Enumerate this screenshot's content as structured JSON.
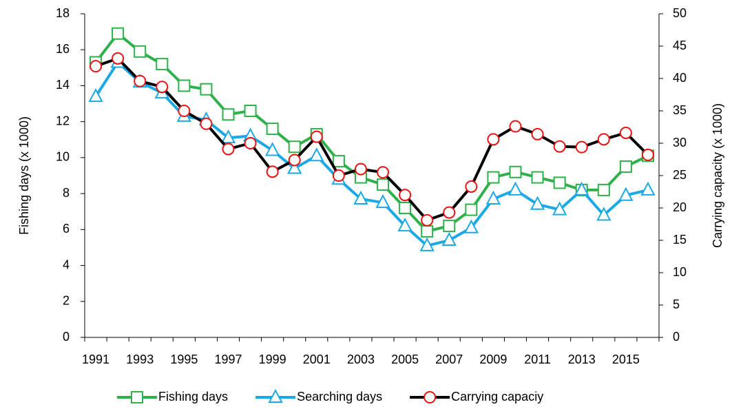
{
  "chart_data": {
    "type": "line",
    "y_label": "Fishing days (x 1000)",
    "y2_label": "Carrying capacity (x 1000)",
    "categories": [
      "1991",
      null,
      "1993",
      null,
      "1995",
      null,
      "1997",
      null,
      "1999",
      null,
      "2001",
      null,
      "2003",
      null,
      "2005",
      null,
      "2007",
      null,
      "2009",
      null,
      "2011",
      null,
      "2013",
      null,
      "2015",
      null
    ],
    "ylim": [
      0,
      18
    ],
    "yticks": [
      0,
      2,
      4,
      6,
      8,
      10,
      12,
      14,
      16,
      18
    ],
    "y2lim": [
      0,
      50
    ],
    "y2ticks": [
      0,
      5,
      10,
      15,
      20,
      25,
      30,
      35,
      40,
      45,
      50
    ],
    "grid": false,
    "legend": "bottom",
    "series": [
      {
        "name": "Fishing days",
        "color": "#2eb04b",
        "marker": "square",
        "marker_color": "#2eb04b",
        "values": [
          15.3,
          16.9,
          15.9,
          15.2,
          14.0,
          13.8,
          12.4,
          12.6,
          11.6,
          10.6,
          11.3,
          9.8,
          8.9,
          8.5,
          7.2,
          5.9,
          6.2,
          7.1,
          8.9,
          9.2,
          8.9,
          8.6,
          8.2,
          8.2,
          9.5,
          10.1
        ]
      },
      {
        "name": "Searching days",
        "color": "#1aa9e6",
        "marker": "triangle",
        "marker_color": "#1aa9e6",
        "values": [
          13.4,
          15.3,
          14.2,
          13.6,
          12.3,
          12.1,
          11.1,
          11.2,
          10.4,
          9.4,
          10.1,
          8.8,
          7.7,
          7.5,
          6.2,
          5.1,
          5.4,
          6.1,
          7.7,
          8.2,
          7.4,
          7.1,
          8.2,
          6.8,
          7.9,
          8.2
        ]
      },
      {
        "name": "Carrying capaciy",
        "color": "#000000",
        "marker": "circle",
        "marker_color": "#ee1111",
        "axis": "y2",
        "values": [
          41.9,
          43.1,
          39.6,
          38.7,
          35.0,
          33.0,
          29.1,
          30.0,
          25.6,
          27.4,
          31.0,
          25.0,
          26.0,
          25.5,
          22.0,
          18.1,
          19.3,
          23.3,
          30.6,
          32.6,
          31.4,
          29.5,
          29.4,
          30.6,
          31.6,
          28.2
        ]
      }
    ]
  }
}
